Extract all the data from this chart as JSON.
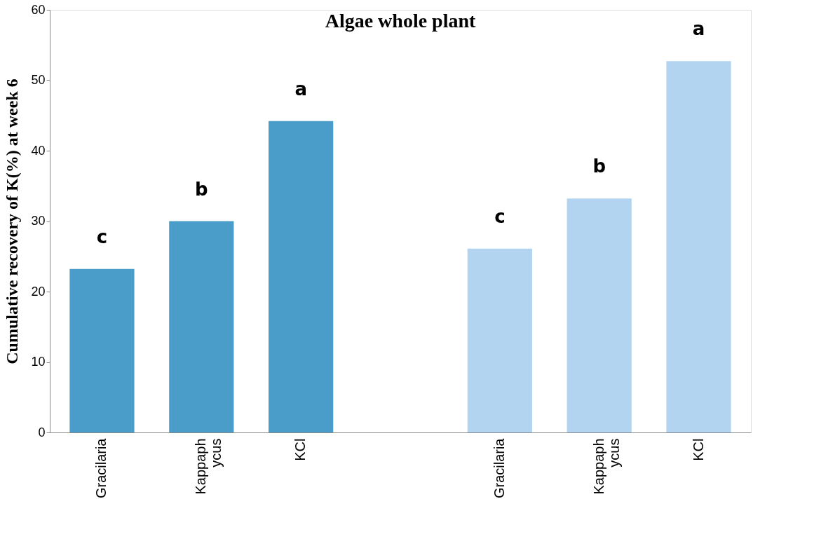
{
  "chart_data": {
    "type": "bar",
    "title": "Algae whole plant",
    "ylabel": "Cumulative recovery of K(%) at week 6",
    "categories": [
      "Gracilaria",
      "Kappaph ycus",
      "KCl",
      null,
      "Gracilaria",
      "Kappaph ycus",
      "KCl"
    ],
    "series": [
      {
        "color": "#4a9cc9",
        "values": [
          23.2,
          30.0,
          44.2,
          null,
          null,
          null,
          null
        ],
        "value_labels": [
          "c",
          "b",
          "a",
          null,
          null,
          null,
          null
        ]
      },
      {
        "color": "#b2d4f0",
        "values": [
          null,
          null,
          null,
          null,
          26.1,
          33.2,
          52.7
        ],
        "value_labels": [
          null,
          null,
          null,
          null,
          "c",
          "b",
          "a"
        ]
      }
    ],
    "ylim": [
      0,
      60
    ],
    "yticks": [
      0,
      10,
      20,
      30,
      40,
      50,
      60
    ],
    "grid": false
  }
}
